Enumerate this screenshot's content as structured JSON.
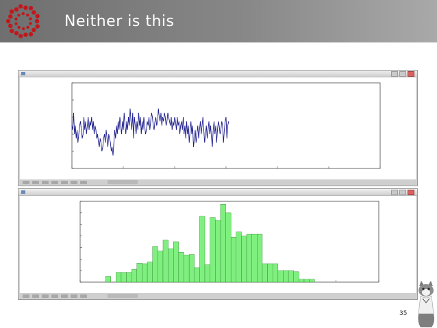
{
  "slide": {
    "title": "Neither is this",
    "page_number": "35"
  },
  "colors": {
    "header_gradient": [
      "#6f6f6f",
      "#a9a9a9"
    ],
    "logo_red": "#c0181d",
    "line_series": "#1a1a8c",
    "histogram_fill": "#7ff07f",
    "histogram_edge": "#2a7a2a"
  },
  "icons": [
    "logo-emblem",
    "mascot-cat-illustration",
    "toolbar-tool-icons"
  ],
  "chart_data": [
    {
      "type": "line",
      "xlim": [
        0,
        3600
      ],
      "ylim": [
        0,
        20
      ],
      "x_step": 10,
      "y": [
        10,
        9,
        13,
        8,
        10,
        7,
        9,
        6,
        8,
        10,
        11,
        9,
        7,
        8,
        12,
        9,
        11,
        8,
        10,
        12,
        9,
        11,
        10,
        12,
        9,
        11,
        8,
        10,
        9,
        7,
        8,
        6,
        5,
        7,
        6,
        4,
        5,
        7,
        8,
        6,
        9,
        7,
        5,
        8,
        7,
        6,
        4,
        5,
        3,
        6,
        9,
        7,
        10,
        8,
        11,
        9,
        12,
        10,
        8,
        11,
        9,
        13,
        10,
        8,
        11,
        9,
        12,
        10,
        14,
        11,
        9,
        13,
        7,
        12,
        10,
        8,
        11,
        9,
        13,
        10,
        12,
        8,
        11,
        9,
        12,
        10,
        8,
        9,
        11,
        10,
        12,
        9,
        11,
        13,
        12,
        10,
        9,
        11,
        12,
        10,
        11,
        14,
        12,
        11,
        13,
        10,
        12,
        11,
        13,
        12,
        10,
        11,
        13,
        12,
        11,
        10,
        12,
        9,
        11,
        10,
        12,
        11,
        9,
        12,
        10,
        11,
        8,
        10,
        11,
        9,
        12,
        8,
        10,
        7,
        11,
        8,
        10,
        6,
        9,
        11,
        8,
        10,
        5,
        7,
        9,
        6,
        8,
        10,
        7,
        9,
        11,
        8,
        10,
        12,
        9,
        6,
        8,
        10,
        7,
        9,
        11,
        8,
        10,
        7,
        5,
        9,
        11,
        8,
        10,
        6,
        9,
        11,
        10,
        8,
        9,
        11,
        10,
        6,
        9,
        11,
        12,
        7,
        10,
        11
      ]
    },
    {
      "type": "bar",
      "xlim": [
        0,
        20
      ],
      "ylim": [
        0,
        140
      ],
      "bin_start": 1.7,
      "bin_width": 0.35,
      "values": [
        10,
        0,
        17,
        17,
        17,
        22,
        33,
        32,
        35,
        62,
        54,
        73,
        58,
        70,
        52,
        47,
        48,
        25,
        114,
        30,
        112,
        107,
        135,
        120,
        78,
        87,
        80,
        83,
        83,
        83,
        32,
        32,
        32,
        20,
        20,
        20,
        18,
        5,
        5,
        5
      ]
    }
  ]
}
